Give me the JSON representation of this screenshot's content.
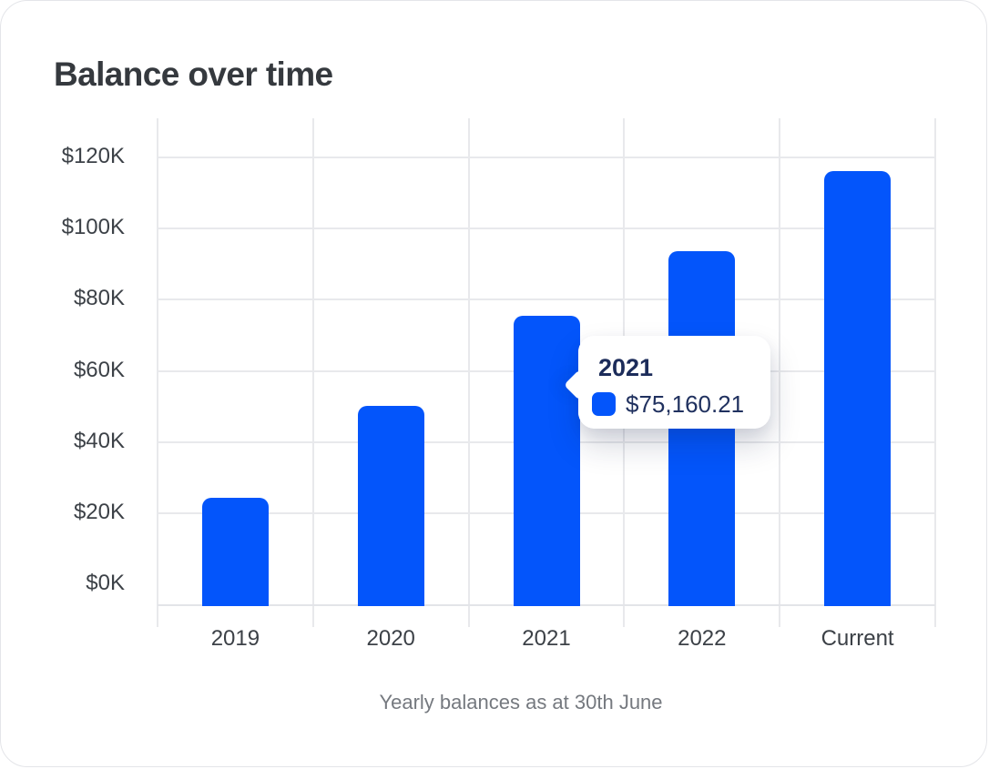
{
  "card": {
    "title": "Balance over time",
    "caption": "Yearly balances as at 30th June"
  },
  "chart_data": {
    "type": "bar",
    "title": "Balance over time",
    "series_name": "Balance",
    "categories": [
      "2019",
      "2020",
      "2021",
      "2022",
      "Current"
    ],
    "values": [
      24000,
      50000,
      75160.21,
      93500,
      116000
    ],
    "xlabel": "Yearly balances as at 30th June",
    "ylabel": "",
    "ylim": [
      0,
      120000
    ],
    "ytick_step": 20000,
    "ytick_labels": [
      "$0K",
      "$20K",
      "$40K",
      "$60K",
      "$80K",
      "$100K",
      "$120K"
    ],
    "grid": true,
    "legend": "none",
    "bar_color": "#0355FB",
    "highlighted_category": "2021",
    "tooltip": {
      "label": "2021",
      "value": "$75,160.21",
      "swatch_color": "#0355FB"
    }
  },
  "colors": {
    "bar": "#0355FB",
    "title_text": "#35393E",
    "axis_text": "#3C4147",
    "caption_text": "#75797F",
    "tooltip_title_text": "#1C2C5A",
    "tooltip_value_text": "#20315F",
    "gridline": "#E8E9EC",
    "card_border": "#E4E5E9",
    "card_bg": "#FFFFFF"
  }
}
